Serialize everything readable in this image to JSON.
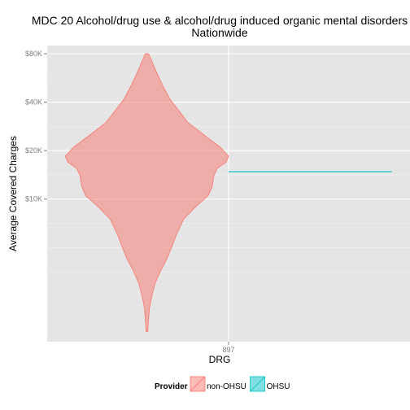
{
  "chart_data": {
    "type": "violin",
    "title_line1": "MDC 20 Alcohol/drug use & alcohol/drug induced organic mental disorders",
    "title_line2": "Nationwide",
    "xlabel": "DRG",
    "ylabel": "Average Covered Charges",
    "categories": [
      "897"
    ],
    "y_scale": "log10",
    "ylim": [
      1300,
      90000
    ],
    "y_ticks": [
      10000,
      20000,
      40000,
      80000
    ],
    "y_tick_labels": [
      "$10K",
      "$20K",
      "$40K",
      "$80K"
    ],
    "legend": {
      "title": "Provider",
      "position": "bottom",
      "entries": [
        {
          "label": "non-OHSU",
          "color": "#F8766D"
        },
        {
          "label": "OHSU",
          "color": "#00BFC4"
        }
      ]
    },
    "series": [
      {
        "name": "non-OHSU",
        "color": "#F8766D",
        "category": "897",
        "min": 1500,
        "max": 80000,
        "density_profile": [
          [
            1500,
            0.01
          ],
          [
            1800,
            0.02
          ],
          [
            2100,
            0.03
          ],
          [
            2500,
            0.06
          ],
          [
            3000,
            0.1
          ],
          [
            3600,
            0.17
          ],
          [
            4200,
            0.24
          ],
          [
            5000,
            0.3
          ],
          [
            6000,
            0.36
          ],
          [
            7500,
            0.45
          ],
          [
            9000,
            0.6
          ],
          [
            10500,
            0.75
          ],
          [
            12000,
            0.8
          ],
          [
            14000,
            0.82
          ],
          [
            15500,
            0.86
          ],
          [
            17000,
            0.97
          ],
          [
            18500,
            1.0
          ],
          [
            21000,
            0.9
          ],
          [
            25000,
            0.7
          ],
          [
            30000,
            0.5
          ],
          [
            36000,
            0.38
          ],
          [
            42000,
            0.28
          ],
          [
            50000,
            0.2
          ],
          [
            58000,
            0.14
          ],
          [
            66000,
            0.09
          ],
          [
            74000,
            0.05
          ],
          [
            80000,
            0.02
          ]
        ]
      },
      {
        "name": "OHSU",
        "color": "#00BFC4",
        "category": "897",
        "value": 14800
      }
    ]
  }
}
